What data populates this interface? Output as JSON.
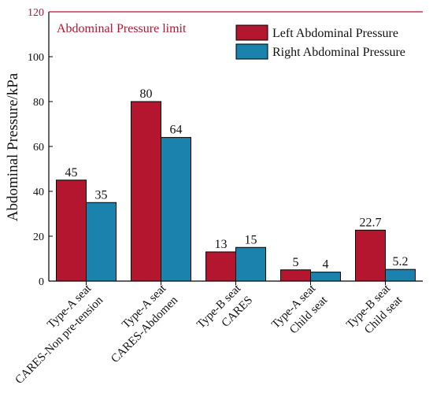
{
  "chart_data": {
    "type": "bar",
    "ylabel": "Abdominal Pressure/kPa",
    "xlabel": "",
    "ylim": [
      0,
      120
    ],
    "yticks": [
      0,
      20,
      40,
      60,
      80,
      100,
      120
    ],
    "grid": false,
    "legend_position": "top-right",
    "categories": [
      [
        "Type-A seat",
        "CARES-Non pre-tension"
      ],
      [
        "Type-A seat",
        "CARES-Abdomen"
      ],
      [
        "Type-B seat",
        "CARES"
      ],
      [
        "Type-A seat",
        "Child seat"
      ],
      [
        "Type-B seat",
        "Child seat"
      ]
    ],
    "series": [
      {
        "name": "Left Abdominal Pressure",
        "color": "#b5162f",
        "values": [
          45,
          80,
          13,
          5,
          22.7
        ],
        "labels": [
          "45",
          "80",
          "13",
          "5",
          "22.7"
        ]
      },
      {
        "name": "Right Abdominal Pressure",
        "color": "#1a82ad",
        "values": [
          35,
          64,
          15,
          4,
          5.2
        ],
        "labels": [
          "35",
          "64",
          "15",
          "4",
          "5.2"
        ]
      }
    ],
    "reference_line": {
      "value": 120,
      "label": "Abdominal Pressure limit",
      "color": "#b5162f"
    }
  }
}
